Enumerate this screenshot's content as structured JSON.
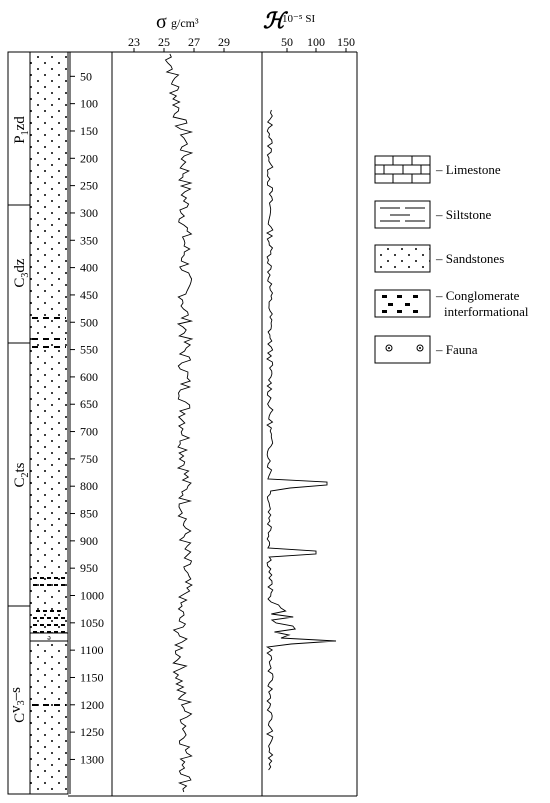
{
  "header": {
    "density_symbol": "σ",
    "density_unit": "g/cm³",
    "density_ticks": [
      "23",
      "25",
      "27",
      "29"
    ],
    "susc_symbol": "ℋ",
    "susc_unit": "10⁻⁵ SI",
    "susc_ticks": [
      "50",
      "100",
      "150"
    ]
  },
  "depth_ticks": [
    50,
    100,
    150,
    200,
    250,
    300,
    350,
    400,
    450,
    500,
    550,
    600,
    650,
    700,
    750,
    800,
    850,
    900,
    950,
    1000,
    1050,
    1100,
    1150,
    1200,
    1250,
    1300
  ],
  "formations": [
    {
      "main": "P",
      "sub": "1",
      "rest": "zd",
      "top": 0,
      "bottom": 285
    },
    {
      "main": "C",
      "sub": "3",
      "rest": "dz",
      "top": 285,
      "bottom": 530
    },
    {
      "main": "C",
      "sub": "2",
      "rest": "ts",
      "top": 530,
      "bottom": 1015
    },
    {
      "main": "C",
      "sub": "",
      "rest": "v",
      "sub2": "3",
      "rest2": "–s",
      "top": 1015,
      "bottom": 1340
    }
  ],
  "legend": [
    {
      "key": "limestone",
      "label": "Limestone"
    },
    {
      "key": "siltstone",
      "label": "Siltstone"
    },
    {
      "key": "sandstone",
      "label": "Sandstones"
    },
    {
      "key": "conglomerate",
      "label": "Conglomerate",
      "label2": "interformational"
    },
    {
      "key": "fauna",
      "label": "Fauna"
    }
  ]
}
